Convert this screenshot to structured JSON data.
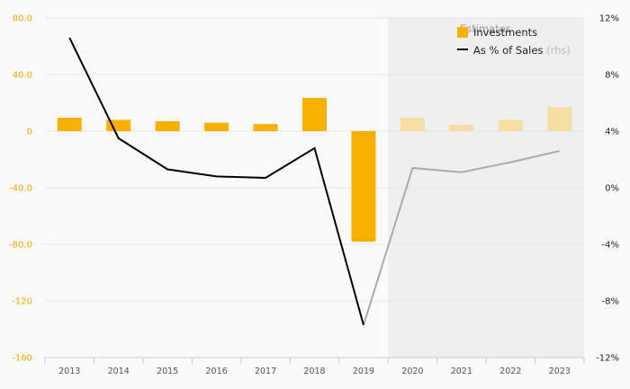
{
  "chart_data": {
    "type": "bar",
    "estimates_label": "Estimates",
    "estimate_start": "2020",
    "categories": [
      "2013",
      "2014",
      "2015",
      "2016",
      "2017",
      "2018",
      "2019",
      "2020",
      "2021",
      "2022",
      "2023"
    ],
    "series": [
      {
        "name": "Investments",
        "type": "bar",
        "axis": "left",
        "values": [
          9.5,
          8.0,
          7.0,
          6.0,
          5.0,
          23.5,
          -78.0,
          9.5,
          4.5,
          8.0,
          17.0
        ],
        "color": "#f9b000",
        "estimate_color": "#f6dea3"
      },
      {
        "name": "As % of Sales",
        "name_suffix": "(rhs)",
        "type": "line",
        "axis": "right",
        "values": [
          10.6,
          3.5,
          1.3,
          0.8,
          0.7,
          2.8,
          -9.7,
          1.4,
          1.1,
          1.8,
          2.6
        ],
        "color": "#000000",
        "estimate_color": "#aaaaaa"
      }
    ],
    "y_left": {
      "ylim": [
        -160,
        80
      ],
      "ticks": [
        80,
        40,
        0,
        -40,
        -80,
        -120,
        -160
      ],
      "tick_labels": [
        "80.0",
        "40.0",
        "0",
        "-40.0",
        "-80.0",
        "-120",
        "-160"
      ],
      "color": "#f0a800"
    },
    "y_right": {
      "ylim": [
        -12,
        12
      ],
      "ticks": [
        12,
        8,
        4,
        0,
        -4,
        -8,
        -12
      ],
      "tick_labels": [
        "12%",
        "8%",
        "4%",
        "0%",
        "-4%",
        "-8%",
        "-12%"
      ],
      "color": "#222222"
    },
    "legend_position": "top-right",
    "grid": true
  }
}
